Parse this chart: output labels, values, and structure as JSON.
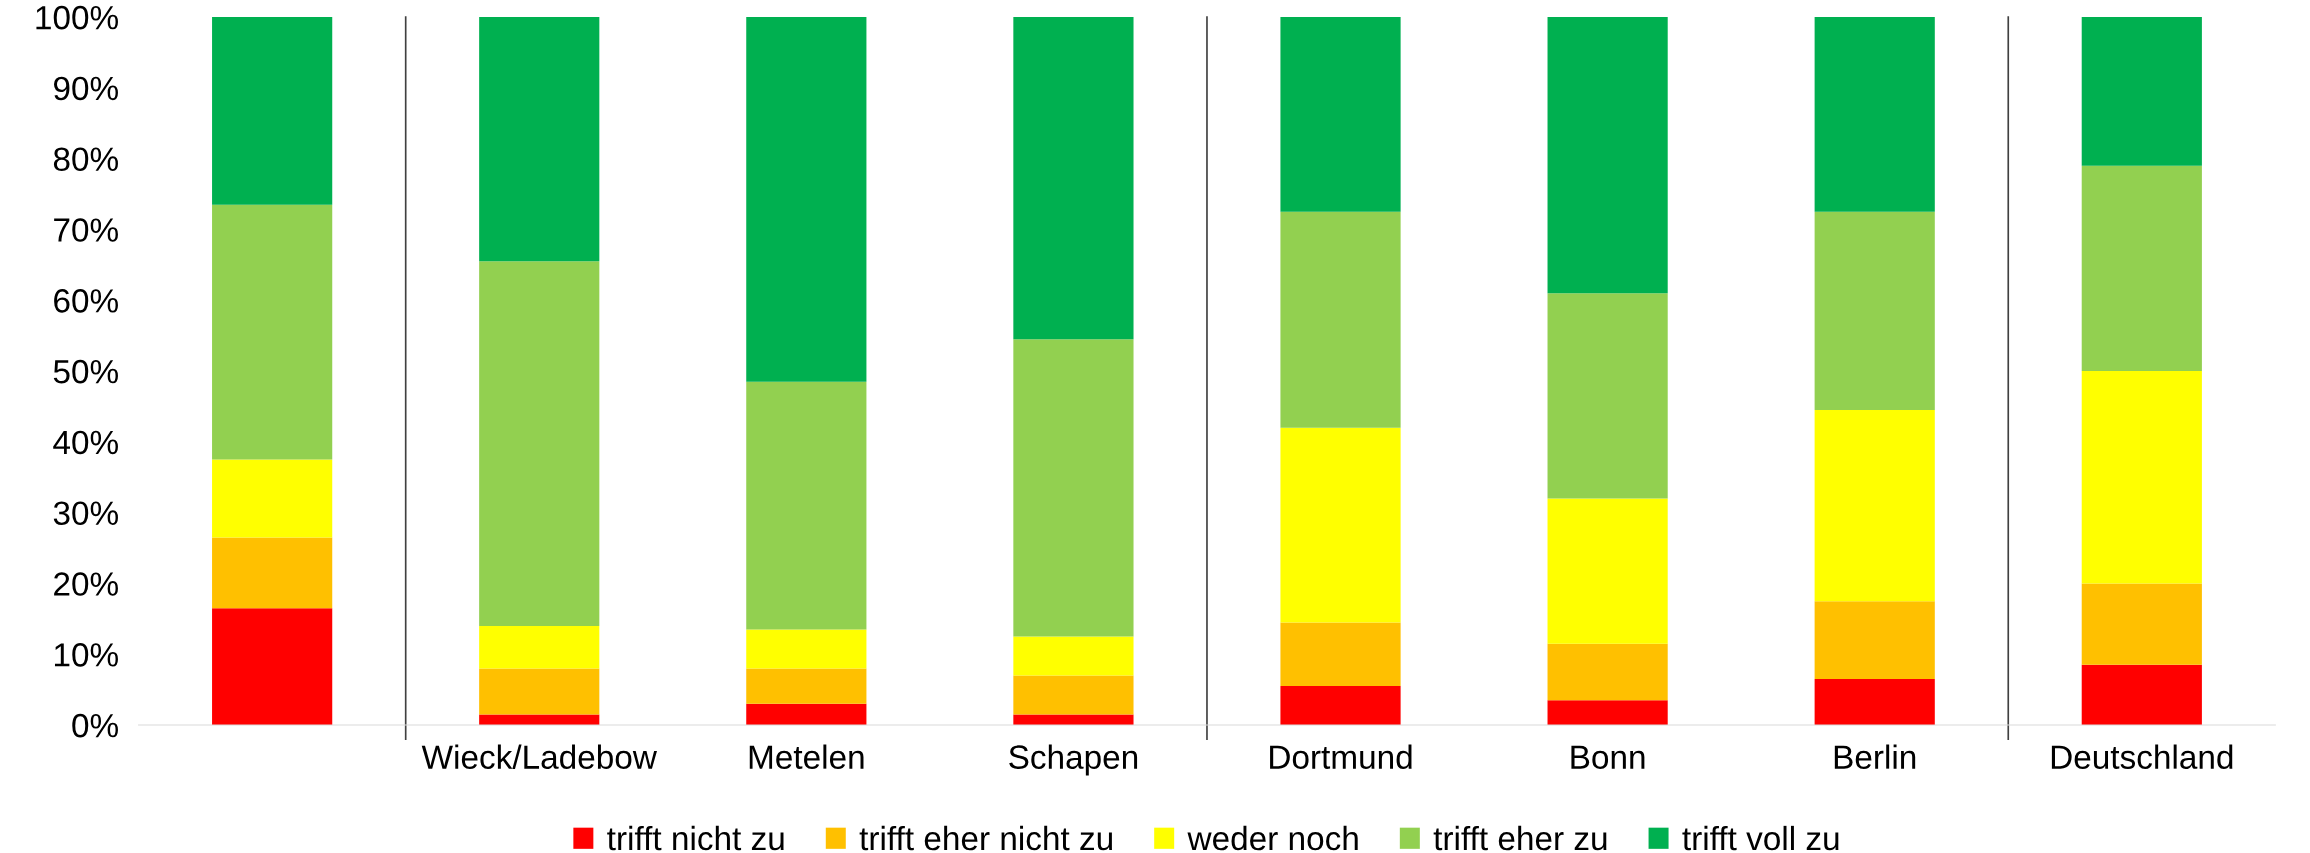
{
  "chart_data": {
    "type": "bar",
    "stacked": true,
    "categories": [
      null,
      "Wieck/Ladebow",
      "Metelen",
      "Schapen",
      "Dortmund",
      "Bonn",
      "Berlin",
      "Deutschland"
    ],
    "series": [
      {
        "name": "trifft nicht zu",
        "color": "#ff0000",
        "values": [
          16.5,
          1.5,
          3,
          1.5,
          5.5,
          3.5,
          6.5,
          8.5
        ]
      },
      {
        "name": "trifft eher nicht zu",
        "color": "#ffc000",
        "values": [
          10,
          6.5,
          5,
          5.5,
          9,
          8,
          11,
          11.5
        ]
      },
      {
        "name": "weder noch",
        "color": "#ffff00",
        "values": [
          11,
          6,
          5.5,
          5.5,
          27.5,
          20.5,
          27,
          30
        ]
      },
      {
        "name": "trifft eher zu",
        "color": "#92d050",
        "values": [
          36,
          51.5,
          35,
          42,
          30.5,
          29,
          28,
          29
        ]
      },
      {
        "name": "trifft voll zu",
        "color": "#00b050",
        "values": [
          26.5,
          34.5,
          51.5,
          45.5,
          27.5,
          39,
          27.5,
          21
        ]
      }
    ],
    "ylim": [
      0,
      100
    ],
    "yticks": [
      {
        "value": 0,
        "label": "0%"
      },
      {
        "value": 10,
        "label": "10%"
      },
      {
        "value": 20,
        "label": "20%"
      },
      {
        "value": 30,
        "label": "30%"
      },
      {
        "value": 40,
        "label": "40%"
      },
      {
        "value": 50,
        "label": "50%"
      },
      {
        "value": 60,
        "label": "60%"
      },
      {
        "value": 70,
        "label": "70%"
      },
      {
        "value": 80,
        "label": "80%"
      },
      {
        "value": 90,
        "label": "90%"
      },
      {
        "value": 100,
        "label": "100%"
      }
    ],
    "grid": false,
    "legend": "bottom"
  }
}
